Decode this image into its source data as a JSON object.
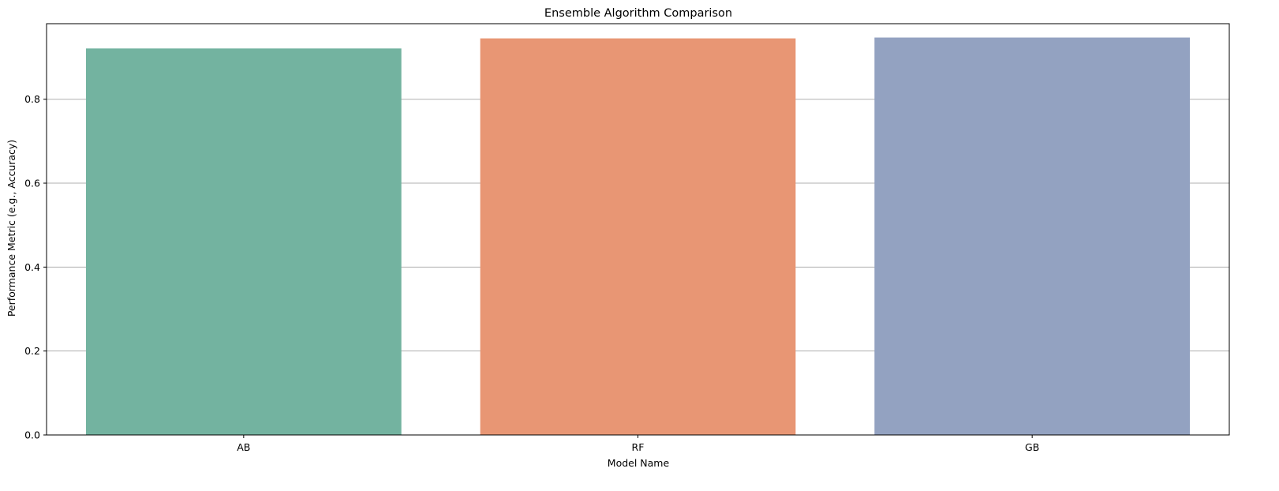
{
  "chart_data": {
    "type": "bar",
    "title": "Ensemble Algorithm Comparison",
    "xlabel": "Model Name",
    "ylabel": "Performance Metric (e.g., Accuracy)",
    "categories": [
      "AB",
      "RF",
      "GB"
    ],
    "values": [
      0.921,
      0.945,
      0.947
    ],
    "colors": [
      "#73b3a0",
      "#e89674",
      "#93a2c1"
    ],
    "ylim": [
      0,
      0.98
    ],
    "yticks": [
      0.0,
      0.2,
      0.4,
      0.6,
      0.8
    ],
    "ytick_labels": [
      "0.0",
      "0.2",
      "0.4",
      "0.6",
      "0.8"
    ],
    "grid": "y-axis",
    "legend": "none"
  }
}
